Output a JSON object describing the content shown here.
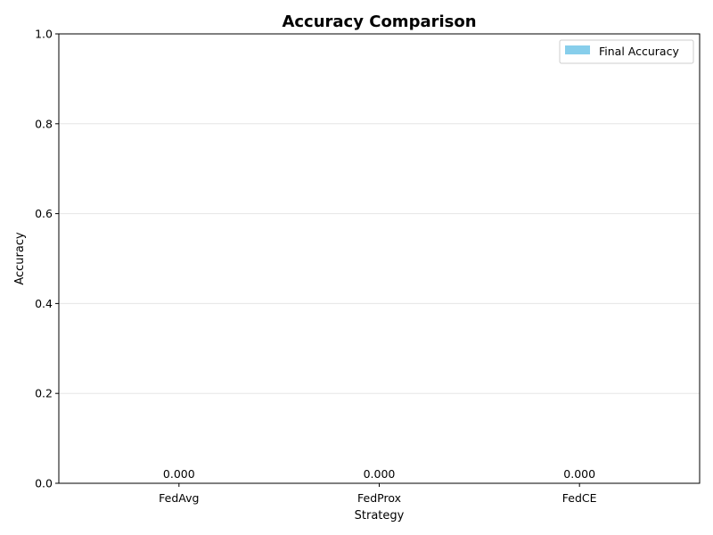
{
  "chart_data": {
    "type": "bar",
    "title": "Accuracy Comparison",
    "xlabel": "Strategy",
    "ylabel": "Accuracy",
    "categories": [
      "FedAvg",
      "FedProx",
      "FedCE"
    ],
    "series": [
      {
        "name": "Final Accuracy",
        "values": [
          0.0,
          0.0,
          0.0
        ],
        "color": "#87ceeb"
      }
    ],
    "data_labels": [
      "0.000",
      "0.000",
      "0.000"
    ],
    "ylim": [
      0,
      1.0
    ],
    "yticks": [
      0.0,
      0.2,
      0.4,
      0.6,
      0.8,
      1.0
    ],
    "ytick_labels": [
      "0.0",
      "0.2",
      "0.4",
      "0.6",
      "0.8",
      "1.0"
    ],
    "grid": "y",
    "legend_position": "top-right"
  }
}
